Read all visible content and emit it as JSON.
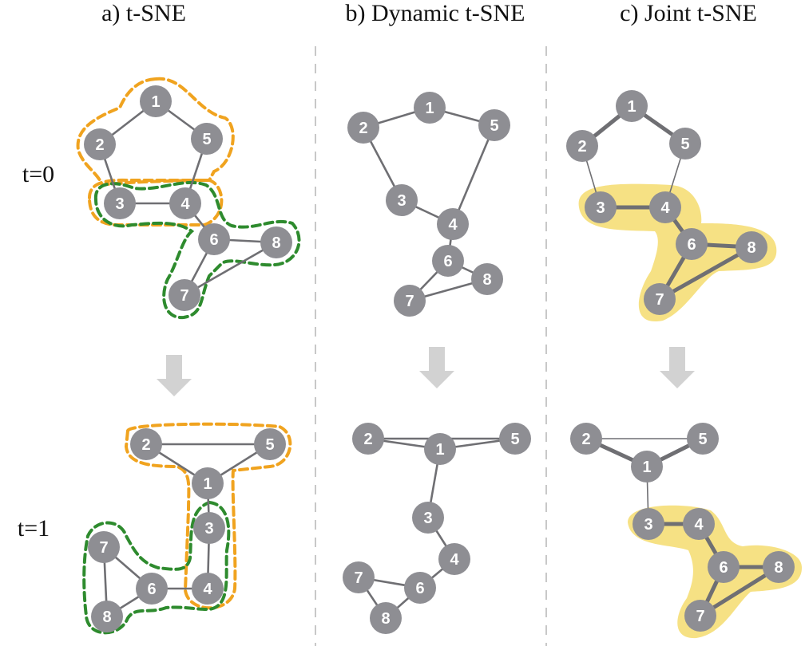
{
  "titles": [
    "a) t-SNE",
    "b) Dynamic t-SNE",
    "c) Joint t-SNE"
  ],
  "time_labels": [
    "t=0",
    "t=1"
  ],
  "colors": {
    "node_fill": "#8e8e93",
    "edge": "#6f6f73",
    "orange_outline": "#f0a31f",
    "green_outline": "#2e8b2e",
    "yellow_highlight": "#f5dc6e",
    "divider": "#c8c8c8",
    "arrow": "#d2d2d2",
    "node_label": "#ffffff"
  },
  "node_labels": [
    "1",
    "2",
    "3",
    "4",
    "5",
    "6",
    "7",
    "8"
  ],
  "graph_edges_t0": [
    [
      1,
      2
    ],
    [
      1,
      5
    ],
    [
      2,
      3
    ],
    [
      3,
      4
    ],
    [
      4,
      5
    ],
    [
      4,
      6
    ],
    [
      6,
      8
    ],
    [
      6,
      7
    ],
    [
      7,
      8
    ]
  ],
  "graph_edges_t1": [
    [
      1,
      2
    ],
    [
      1,
      5
    ],
    [
      2,
      5
    ],
    [
      1,
      3
    ],
    [
      3,
      4
    ],
    [
      4,
      6
    ],
    [
      6,
      7
    ],
    [
      6,
      8
    ],
    [
      7,
      8
    ]
  ],
  "panels": [
    {
      "id": "a_tsne_t0",
      "highlight": "outlines"
    },
    {
      "id": "b_dynamic_t0",
      "highlight": "none"
    },
    {
      "id": "c_joint_t0",
      "highlight": "yellow"
    },
    {
      "id": "a_tsne_t1",
      "highlight": "outlines"
    },
    {
      "id": "b_dynamic_t1",
      "highlight": "none"
    },
    {
      "id": "c_joint_t1",
      "highlight": "yellow"
    }
  ]
}
